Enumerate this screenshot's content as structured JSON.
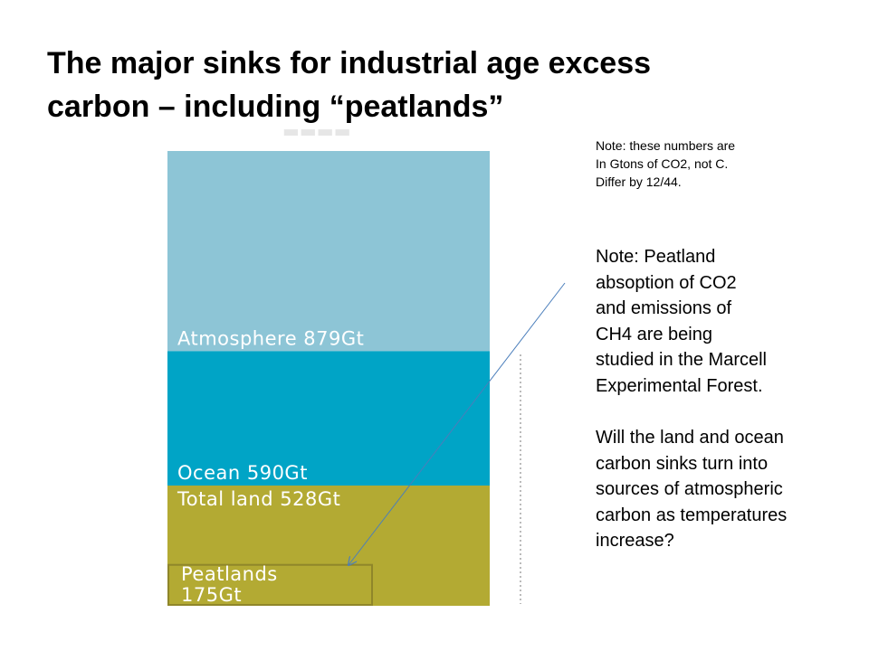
{
  "slide": {
    "title_lines": [
      "The major sinks for industrial age excess",
      "carbon – including “peatlands”"
    ],
    "note_units_lines": [
      "Note:  these numbers are",
      "In Gtons of  CO2, not C.",
      "Differ by 12/44."
    ],
    "note_peatland_lines": [
      "Note:  Peatland",
      "absoption of  CO2",
      "and emissions of",
      "CH4 are being",
      "studied in the Marcell",
      "Experimental Forest."
    ],
    "question_lines": [
      "Will  the land and ocean",
      "carbon sinks  turn into",
      "sources of atmospheric",
      "carbon as temperatures",
      "increase?"
    ]
  },
  "chart_data": {
    "type": "bar",
    "orientation": "stacked-vertical",
    "units": "Gt",
    "segments": [
      {
        "label": "Atmosphere 879Gt",
        "value": 879,
        "color": "#8dc5d6"
      },
      {
        "label": "Ocean 590Gt",
        "value": 590,
        "color": "#00a4c6"
      },
      {
        "label": "Total land 528Gt",
        "value": 528,
        "color": "#b3aa33"
      }
    ],
    "inset": {
      "label_lines": [
        "Peatlands",
        "175Gt"
      ],
      "value": 175,
      "within": "Total land 528Gt"
    },
    "colors": {
      "atmosphere": "#8dc5d6",
      "ocean": "#00a4c6",
      "land": "#b3aa33",
      "peatlands_border": "#8f862a",
      "arrow": "#4a7ebb"
    }
  }
}
